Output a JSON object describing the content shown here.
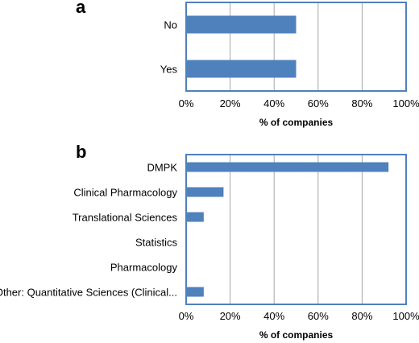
{
  "chart_data": [
    {
      "type": "bar",
      "orientation": "horizontal",
      "panel_label": "a",
      "categories": [
        "No",
        "Yes"
      ],
      "values": [
        50,
        50
      ],
      "xlabel": "% of companies",
      "ylabel": "",
      "xlim": [
        0,
        100
      ],
      "tick_labels": [
        "0%",
        "20%",
        "40%",
        "60%",
        "80%",
        "100%"
      ],
      "grid": "vertical",
      "bar_color": "#4f81bd",
      "frame_color": "#4f81bd",
      "grid_color": "#a6a6a6"
    },
    {
      "type": "bar",
      "orientation": "horizontal",
      "panel_label": "b",
      "categories": [
        "DMPK",
        "Clinical Pharmacology",
        "Translational Sciences",
        "Statistics",
        "Pharmacology",
        "Other: Quantitative Sciences (Clinical..."
      ],
      "values": [
        92,
        17,
        8,
        0,
        0,
        8
      ],
      "xlabel": "% of companies",
      "ylabel": "",
      "xlim": [
        0,
        100
      ],
      "tick_labels": [
        "0%",
        "20%",
        "40%",
        "60%",
        "80%",
        "100%"
      ],
      "grid": "vertical",
      "bar_color": "#4f81bd",
      "frame_color": "#4f81bd",
      "grid_color": "#a6a6a6"
    }
  ]
}
